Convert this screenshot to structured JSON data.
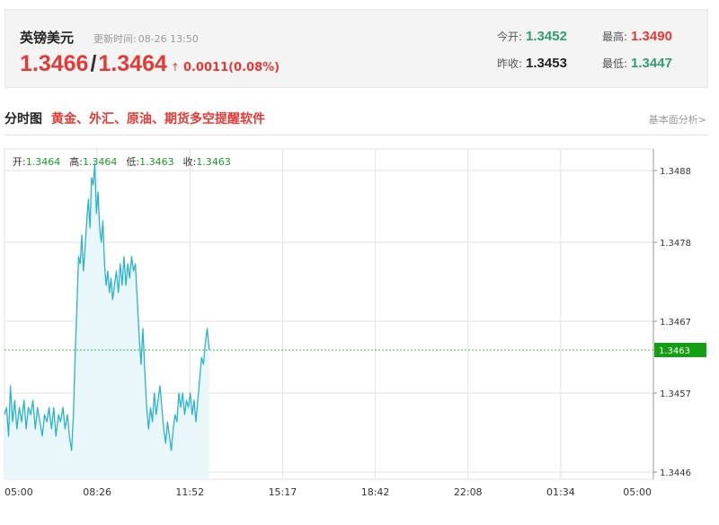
{
  "quote": {
    "name": "英镑美元",
    "update_label": "更新时间:",
    "update_time": "08-26 13:50",
    "bid": "1.3466",
    "separator": "/",
    "ask": "1.3464",
    "change": "0.0011(0.08%)",
    "change_arrow": "↑",
    "open_label": "今开:",
    "open_value": "1.3452",
    "high_label": "最高:",
    "high_value": "1.3490",
    "prev_close_label": "昨收:",
    "prev_close_value": "1.3453",
    "low_label": "最低:",
    "low_value": "1.3447"
  },
  "section": {
    "title": "分时图",
    "promo": "黄金、外汇、原油、期货多空提醒软件",
    "link": "基本面分析>"
  },
  "ohlc": {
    "open_label": "开:",
    "open": "1.3464",
    "high_label": "高:",
    "high": "1.3464",
    "low_label": "低:",
    "low": "1.3463",
    "close_label": "收:",
    "close": "1.3463"
  },
  "colors": {
    "line": "#2ab3c9",
    "area": "#e9f6fa",
    "grid": "#e2e2e2",
    "current_line": "#3dbb3d",
    "current_badge": "#12a012",
    "red": "#e53935",
    "green": "#2e9e6e"
  },
  "chart_data": {
    "type": "line",
    "xlabel": "",
    "ylabel": "",
    "x_ticks": [
      "05:00",
      "08:26",
      "11:52",
      "15:17",
      "18:42",
      "22:08",
      "01:34",
      "05:00"
    ],
    "y_ticks": [
      "1.3488",
      "1.3478",
      "1.3467",
      "1.3457",
      "1.3446"
    ],
    "ylim": [
      1.3445,
      1.3491
    ],
    "current_price": "1.3463",
    "current_value": 1.3463,
    "x_unit": "hours from 05:00",
    "xlim": [
      0,
      24
    ],
    "grid": true,
    "series": [
      {
        "values": [
          [
            0.0,
            1.3454
          ],
          [
            0.08,
            1.3455
          ],
          [
            0.15,
            1.3451
          ],
          [
            0.22,
            1.3458
          ],
          [
            0.3,
            1.3453
          ],
          [
            0.38,
            1.3456
          ],
          [
            0.46,
            1.3452
          ],
          [
            0.55,
            1.3455
          ],
          [
            0.63,
            1.3453
          ],
          [
            0.72,
            1.3456
          ],
          [
            0.8,
            1.3452
          ],
          [
            0.88,
            1.3455
          ],
          [
            0.97,
            1.3454
          ],
          [
            1.05,
            1.3456
          ],
          [
            1.14,
            1.3452
          ],
          [
            1.22,
            1.3455
          ],
          [
            1.31,
            1.3453
          ],
          [
            1.4,
            1.3451
          ],
          [
            1.48,
            1.3454
          ],
          [
            1.57,
            1.3453
          ],
          [
            1.65,
            1.3455
          ],
          [
            1.74,
            1.3452
          ],
          [
            1.82,
            1.3455
          ],
          [
            1.9,
            1.3451
          ],
          [
            2.0,
            1.3454
          ],
          [
            2.07,
            1.3453
          ],
          [
            2.16,
            1.3455
          ],
          [
            2.24,
            1.3452
          ],
          [
            2.33,
            1.3454
          ],
          [
            2.4,
            1.3451
          ],
          [
            2.48,
            1.3449
          ],
          [
            2.55,
            1.3454
          ],
          [
            2.62,
            1.3463
          ],
          [
            2.68,
            1.3469
          ],
          [
            2.74,
            1.3476
          ],
          [
            2.8,
            1.3475
          ],
          [
            2.86,
            1.3479
          ],
          [
            2.92,
            1.3474
          ],
          [
            2.98,
            1.3477
          ],
          [
            3.04,
            1.3481
          ],
          [
            3.1,
            1.3484
          ],
          [
            3.16,
            1.348
          ],
          [
            3.22,
            1.3487
          ],
          [
            3.28,
            1.3486
          ],
          [
            3.34,
            1.3489
          ],
          [
            3.4,
            1.3482
          ],
          [
            3.46,
            1.3485
          ],
          [
            3.52,
            1.348
          ],
          [
            3.58,
            1.3478
          ],
          [
            3.64,
            1.3481
          ],
          [
            3.7,
            1.3475
          ],
          [
            3.76,
            1.3472
          ],
          [
            3.82,
            1.3474
          ],
          [
            3.88,
            1.3471
          ],
          [
            3.94,
            1.3473
          ],
          [
            4.0,
            1.347
          ],
          [
            4.07,
            1.3472
          ],
          [
            4.14,
            1.3474
          ],
          [
            4.21,
            1.3471
          ],
          [
            4.28,
            1.3475
          ],
          [
            4.35,
            1.3472
          ],
          [
            4.42,
            1.3476
          ],
          [
            4.49,
            1.3472
          ],
          [
            4.56,
            1.3475
          ],
          [
            4.63,
            1.3473
          ],
          [
            4.7,
            1.3476
          ],
          [
            4.77,
            1.3474
          ],
          [
            4.84,
            1.3475
          ],
          [
            4.91,
            1.347
          ],
          [
            4.98,
            1.3465
          ],
          [
            5.05,
            1.3461
          ],
          [
            5.12,
            1.3466
          ],
          [
            5.19,
            1.346
          ],
          [
            5.26,
            1.3455
          ],
          [
            5.33,
            1.3452
          ],
          [
            5.4,
            1.3455
          ],
          [
            5.47,
            1.3453
          ],
          [
            5.54,
            1.3457
          ],
          [
            5.61,
            1.3454
          ],
          [
            5.68,
            1.3456
          ],
          [
            5.75,
            1.3458
          ],
          [
            5.82,
            1.3455
          ],
          [
            5.89,
            1.3452
          ],
          [
            5.96,
            1.345
          ],
          [
            6.03,
            1.3453
          ],
          [
            6.1,
            1.3451
          ],
          [
            6.17,
            1.3449
          ],
          [
            6.24,
            1.3452
          ],
          [
            6.31,
            1.3454
          ],
          [
            6.38,
            1.3453
          ],
          [
            6.45,
            1.3457
          ],
          [
            6.52,
            1.3455
          ],
          [
            6.59,
            1.3457
          ],
          [
            6.66,
            1.3454
          ],
          [
            6.73,
            1.3456
          ],
          [
            6.8,
            1.3455
          ],
          [
            6.87,
            1.3457
          ],
          [
            6.94,
            1.3454
          ],
          [
            7.01,
            1.3456
          ],
          [
            7.08,
            1.3453
          ],
          [
            7.15,
            1.3456
          ],
          [
            7.22,
            1.3459
          ],
          [
            7.29,
            1.3462
          ],
          [
            7.36,
            1.3461
          ],
          [
            7.43,
            1.3464
          ],
          [
            7.5,
            1.3466
          ],
          [
            7.57,
            1.3463
          ]
        ]
      }
    ]
  }
}
